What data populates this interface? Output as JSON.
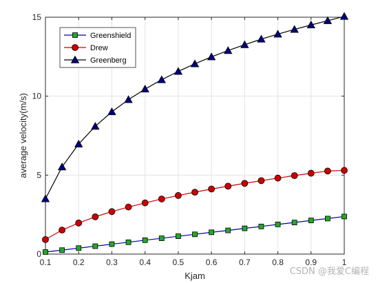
{
  "chart_data": {
    "type": "line",
    "title": "",
    "xlabel": "Kjam",
    "ylabel": "average velocity(m/s)",
    "xlim": [
      0.1,
      1
    ],
    "ylim": [
      0,
      15
    ],
    "xticks": [
      "0.1",
      "0.2",
      "0.3",
      "0.4",
      "0.5",
      "0.6",
      "0.7",
      "0.8",
      "0.9",
      "1"
    ],
    "yticks": [
      "0",
      "5",
      "10",
      "15"
    ],
    "grid": true,
    "legend_position": "top-left",
    "x": [
      0.1,
      0.15,
      0.2,
      0.25,
      0.3,
      0.35,
      0.4,
      0.45,
      0.5,
      0.55,
      0.6,
      0.65,
      0.7,
      0.75,
      0.8,
      0.85,
      0.9,
      0.95,
      1.0
    ],
    "series": [
      {
        "name": "Greenshield",
        "marker": "square",
        "line_color": "#0000a0",
        "marker_color": "#22aa22",
        "values": [
          0.13,
          0.25,
          0.38,
          0.5,
          0.63,
          0.75,
          0.88,
          1.0,
          1.13,
          1.25,
          1.38,
          1.5,
          1.63,
          1.75,
          1.88,
          2.0,
          2.13,
          2.25,
          2.38
        ]
      },
      {
        "name": "Drew",
        "marker": "circle",
        "line_color": "#cc0000",
        "marker_color": "#cc0000",
        "values": [
          0.92,
          1.52,
          1.97,
          2.36,
          2.69,
          2.98,
          3.24,
          3.49,
          3.71,
          3.92,
          4.12,
          4.3,
          4.48,
          4.65,
          4.81,
          4.97,
          5.12,
          5.26,
          5.3
        ]
      },
      {
        "name": "Greenberg",
        "marker": "triangle",
        "line_color": "#000000",
        "marker_color": "#000080",
        "values": [
          3.5,
          5.52,
          6.97,
          8.09,
          9.01,
          9.78,
          10.45,
          11.04,
          11.57,
          12.05,
          12.49,
          12.89,
          13.26,
          13.61,
          13.93,
          14.23,
          14.51,
          14.78,
          15.05
        ]
      }
    ]
  },
  "watermark": "CSDN @我爱C编程"
}
